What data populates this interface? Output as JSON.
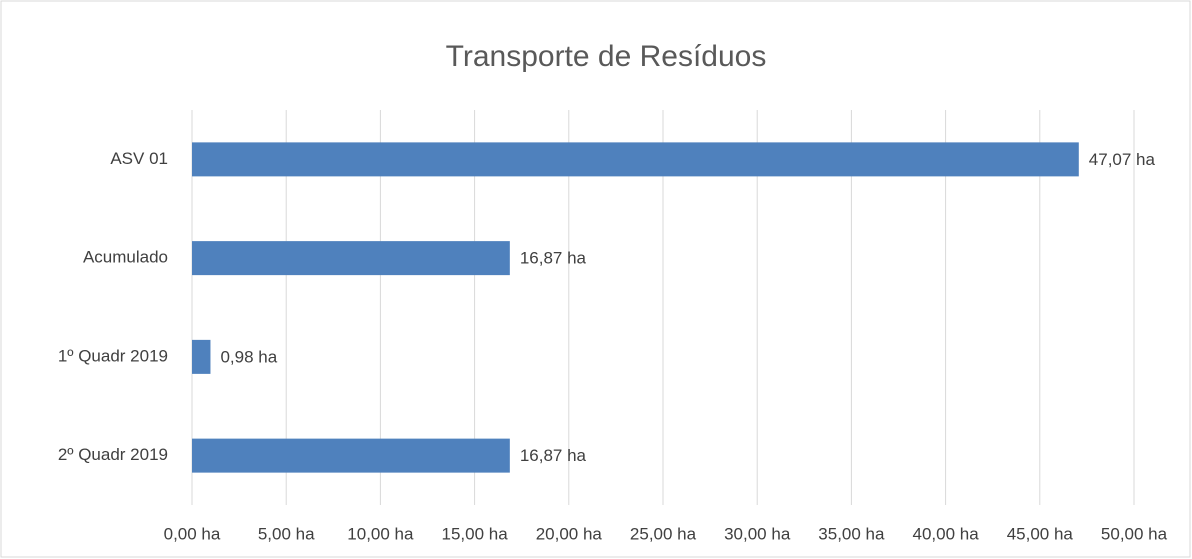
{
  "chart_data": {
    "type": "bar",
    "orientation": "horizontal",
    "title": "Transporte de Resíduos",
    "categories": [
      "ASV 01",
      "Acumulado",
      "1º Quadr 2019",
      "2º Quadr 2019"
    ],
    "values": [
      47.07,
      16.87,
      0.98,
      16.87
    ],
    "value_labels": [
      "47,07 ha",
      "16,87 ha",
      "0,98 ha",
      "16,87 ha"
    ],
    "color": "#4f81bd",
    "xlim": [
      0,
      50
    ],
    "xticks": [
      {
        "value": 0,
        "label": "0,00 ha"
      },
      {
        "value": 5,
        "label": "5,00 ha"
      },
      {
        "value": 10,
        "label": "10,00 ha"
      },
      {
        "value": 15,
        "label": "15,00 ha"
      },
      {
        "value": 20,
        "label": "20,00 ha"
      },
      {
        "value": 25,
        "label": "25,00 ha"
      },
      {
        "value": 30,
        "label": "30,00 ha"
      },
      {
        "value": 35,
        "label": "35,00 ha"
      },
      {
        "value": 40,
        "label": "40,00 ha"
      },
      {
        "value": 45,
        "label": "45,00 ha"
      },
      {
        "value": 50,
        "label": "50,00 ha"
      }
    ],
    "grid": true
  }
}
